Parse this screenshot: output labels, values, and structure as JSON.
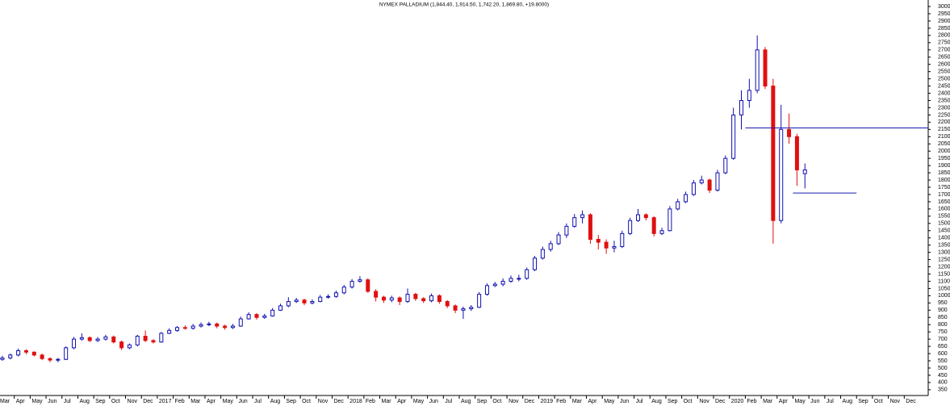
{
  "chart_data": {
    "type": "candlestick",
    "title": "NYMEX PALLADIUM (1,844.40, 1,914.50, 1,742.20, 1,869.80, +19.8000)",
    "categories": [
      "Mar",
      null,
      "Apr",
      null,
      "May",
      null,
      "Jun",
      null,
      "Jul",
      null,
      "Aug",
      null,
      "Sep",
      null,
      "Oct",
      null,
      "Nov",
      null,
      "Dec",
      null,
      "2017",
      null,
      "Feb",
      null,
      "Mar",
      null,
      "Apr",
      null,
      "May",
      null,
      "Jun",
      null,
      "Jul",
      null,
      "Aug",
      null,
      "Sep",
      null,
      "Oct",
      null,
      "Nov",
      null,
      "Dec",
      null,
      "2018",
      null,
      "Feb",
      null,
      "Mar",
      null,
      "Apr",
      null,
      "May",
      null,
      "Jun",
      null,
      "Jul",
      null,
      "Aug",
      null,
      "Sep",
      null,
      "Oct",
      null,
      "Nov",
      null,
      "Dec",
      null,
      "2019",
      null,
      "Feb",
      null,
      "Mar",
      null,
      "Apr",
      null,
      "May",
      null,
      "Jun",
      null,
      "Jul",
      null,
      "Aug",
      null,
      "Sep",
      null,
      "Oct",
      null,
      "Nov",
      null,
      "Dec",
      null,
      "2020",
      null,
      "Feb",
      null,
      "Mar",
      null,
      "Apr",
      null,
      "May",
      null,
      "Jun",
      null,
      "Jul",
      null,
      "Aug",
      null,
      "Sep",
      null,
      "Oct",
      null,
      "Nov",
      null,
      "Dec",
      null
    ],
    "open": [
      560,
      570,
      590,
      620,
      610,
      590,
      565,
      555,
      560,
      640,
      700,
      710,
      690,
      700,
      715,
      680,
      640,
      660,
      720,
      690,
      680,
      740,
      760,
      780,
      775,
      790,
      800,
      805,
      790,
      780,
      790,
      840,
      870,
      850,
      860,
      900,
      930,
      960,
      970,
      950,
      960,
      990,
      995,
      1020,
      1060,
      1100,
      1110,
      1030,
      990,
      970,
      985,
      960,
      1010,
      980,
      965,
      1000,
      960,
      930,
      900,
      910,
      920,
      1010,
      1070,
      1080,
      1100,
      1120,
      1120,
      1180,
      1260,
      1320,
      1360,
      1420,
      1480,
      1540,
      1560,
      1390,
      1370,
      1330,
      1340,
      1430,
      1520,
      1560,
      1540,
      1430,
      1450,
      1600,
      1650,
      1700,
      1780,
      1800,
      1730,
      1850,
      1950,
      2250,
      2350,
      2420,
      2700,
      2450,
      1520,
      2150,
      2100,
      1844.4,
      null,
      null,
      null,
      null,
      null,
      null,
      null,
      null,
      null,
      null,
      null,
      null,
      null,
      null
    ],
    "high": [
      585,
      600,
      635,
      630,
      615,
      600,
      575,
      570,
      650,
      715,
      740,
      720,
      715,
      730,
      725,
      690,
      670,
      730,
      760,
      700,
      750,
      775,
      790,
      795,
      805,
      815,
      820,
      815,
      800,
      805,
      855,
      885,
      880,
      875,
      915,
      945,
      990,
      985,
      980,
      975,
      1005,
      1010,
      1035,
      1075,
      1115,
      1135,
      1120,
      1045,
      1000,
      1000,
      995,
      1050,
      1020,
      990,
      1015,
      1010,
      970,
      940,
      925,
      935,
      1025,
      1085,
      1095,
      1120,
      1140,
      1145,
      1195,
      1275,
      1340,
      1380,
      1440,
      1500,
      1565,
      1590,
      1570,
      1420,
      1390,
      1380,
      1450,
      1540,
      1600,
      1570,
      1550,
      1470,
      1620,
      1670,
      1720,
      1800,
      1830,
      1810,
      1870,
      1970,
      2300,
      2420,
      2500,
      2800,
      2720,
      2500,
      2320,
      2260,
      2120,
      1914.5,
      null,
      null,
      null,
      null,
      null,
      null,
      null,
      null,
      null,
      null,
      null,
      null,
      null,
      null
    ],
    "low": [
      550,
      560,
      580,
      595,
      580,
      555,
      540,
      540,
      555,
      630,
      690,
      680,
      680,
      690,
      670,
      625,
      630,
      650,
      680,
      670,
      675,
      735,
      750,
      765,
      765,
      780,
      790,
      775,
      765,
      770,
      785,
      835,
      835,
      840,
      855,
      895,
      920,
      950,
      935,
      940,
      955,
      980,
      985,
      1010,
      1050,
      1090,
      1020,
      960,
      950,
      955,
      935,
      950,
      965,
      950,
      955,
      945,
      915,
      880,
      840,
      895,
      915,
      1000,
      1060,
      1065,
      1090,
      1100,
      1110,
      1170,
      1250,
      1305,
      1350,
      1400,
      1470,
      1500,
      1360,
      1320,
      1290,
      1300,
      1330,
      1420,
      1510,
      1520,
      1410,
      1420,
      1445,
      1590,
      1640,
      1690,
      1770,
      1710,
      1720,
      1840,
      1940,
      2150,
      2300,
      2400,
      2430,
      1360,
      1500,
      2050,
      1760,
      1742.2,
      null,
      null,
      null,
      null,
      null,
      null,
      null,
      null,
      null,
      null,
      null,
      null,
      null,
      null
    ],
    "close": [
      570,
      590,
      620,
      610,
      590,
      565,
      555,
      560,
      640,
      700,
      710,
      690,
      700,
      715,
      680,
      640,
      660,
      720,
      690,
      680,
      740,
      760,
      780,
      775,
      790,
      800,
      805,
      790,
      780,
      790,
      840,
      870,
      850,
      860,
      900,
      930,
      960,
      970,
      950,
      960,
      990,
      995,
      1020,
      1060,
      1100,
      1110,
      1030,
      990,
      970,
      985,
      960,
      1010,
      980,
      965,
      1000,
      960,
      930,
      900,
      910,
      920,
      1010,
      1070,
      1080,
      1100,
      1120,
      1120,
      1180,
      1260,
      1320,
      1360,
      1420,
      1480,
      1540,
      1560,
      1390,
      1370,
      1330,
      1340,
      1430,
      1520,
      1560,
      1540,
      1430,
      1450,
      1600,
      1650,
      1700,
      1780,
      1800,
      1730,
      1850,
      1950,
      2250,
      2350,
      2420,
      2700,
      2450,
      1520,
      2150,
      2100,
      1870,
      1869.8,
      null,
      null,
      null,
      null,
      null,
      null,
      null,
      null,
      null,
      null,
      null,
      null,
      null,
      null
    ],
    "up_color": "#1010b0",
    "down_color": "#e01010",
    "reference_lines": [
      2160,
      1710
    ],
    "reference_color": "#1a1ab0",
    "ylim": [
      310,
      3045
    ],
    "yticks": [
      350,
      400,
      450,
      500,
      550,
      600,
      650,
      700,
      750,
      800,
      850,
      900,
      950,
      1000,
      1050,
      1100,
      1150,
      1200,
      1250,
      1300,
      1350,
      1400,
      1450,
      1500,
      1550,
      1600,
      1650,
      1700,
      1750,
      1800,
      1850,
      1900,
      1950,
      2000,
      2050,
      2100,
      2150,
      2200,
      2250,
      2300,
      2350,
      2400,
      2450,
      2500,
      2550,
      2600,
      2650,
      2700,
      2750,
      2800,
      2850,
      2900,
      2950,
      3000
    ]
  }
}
